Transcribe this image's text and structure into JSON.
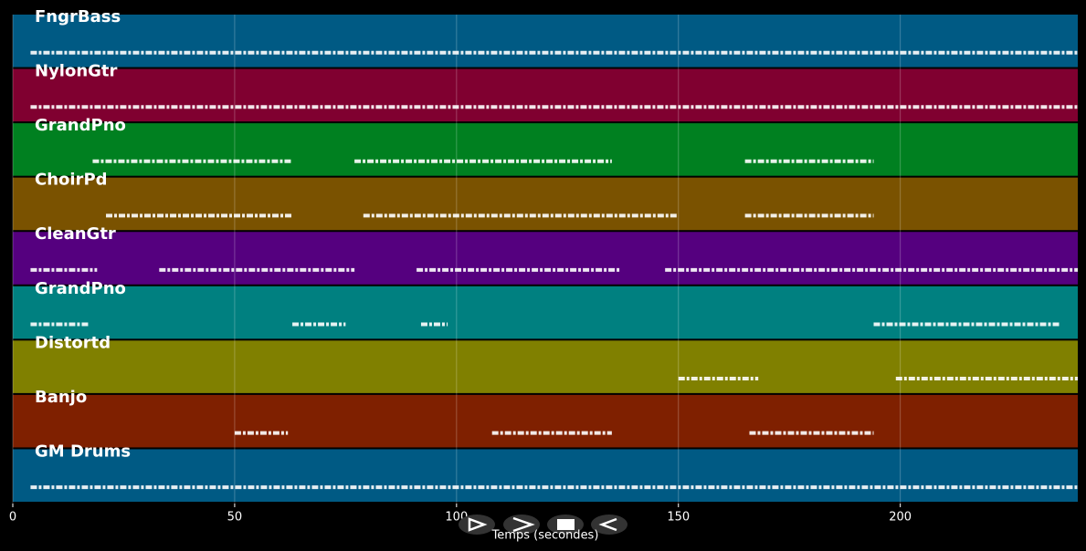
{
  "chart_data": {
    "type": "pianoroll",
    "xlabel": "Temps (secondes)",
    "xlim": [
      0,
      240
    ],
    "xticks": [
      0,
      50,
      100,
      150,
      200
    ],
    "grid": true,
    "series": [
      {
        "name": "FngrBass",
        "color": "#005a84",
        "segments": [
          [
            4,
            240
          ]
        ]
      },
      {
        "name": "NylonGtr",
        "color": "#800030",
        "segments": [
          [
            4,
            240
          ]
        ]
      },
      {
        "name": "GrandPno",
        "color": "#008020",
        "segments": [
          [
            18,
            63
          ],
          [
            77,
            135
          ],
          [
            165,
            194
          ]
        ]
      },
      {
        "name": "ChoirPd",
        "color": "#7a5200",
        "segments": [
          [
            21,
            63
          ],
          [
            79,
            150
          ],
          [
            165,
            194
          ]
        ]
      },
      {
        "name": "CleanGtr",
        "color": "#55007f",
        "segments": [
          [
            4,
            19
          ],
          [
            33,
            77
          ],
          [
            91,
            137
          ],
          [
            147,
            240
          ]
        ]
      },
      {
        "name": "GrandPno",
        "color": "#008080",
        "segments": [
          [
            4,
            17
          ],
          [
            63,
            75
          ],
          [
            92,
            98
          ],
          [
            194,
            236
          ]
        ]
      },
      {
        "name": "Distortd",
        "color": "#808000",
        "segments": [
          [
            150,
            168
          ],
          [
            199,
            240
          ]
        ]
      },
      {
        "name": "Banjo",
        "color": "#7f2000",
        "segments": [
          [
            50,
            62
          ],
          [
            108,
            135
          ],
          [
            166,
            194
          ]
        ]
      },
      {
        "name": "GM Drums",
        "color": "#005a84",
        "segments": [
          [
            4,
            240
          ]
        ]
      }
    ]
  }
}
